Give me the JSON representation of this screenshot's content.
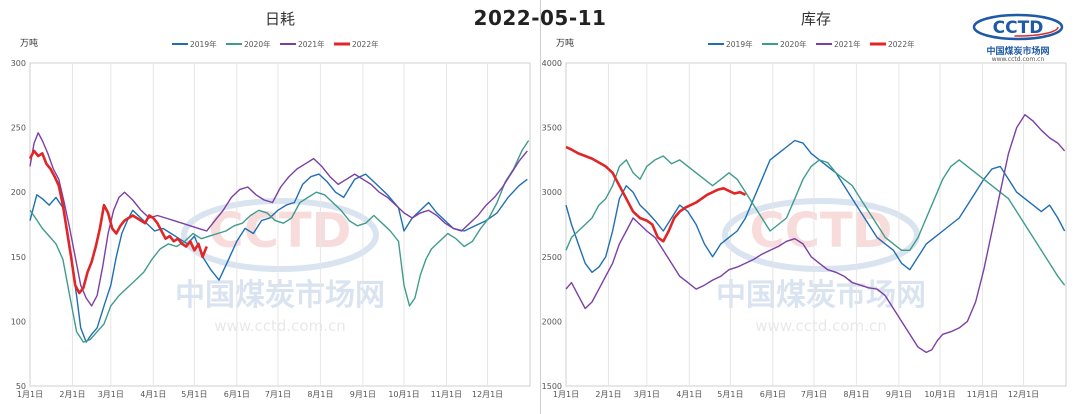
{
  "header": {
    "date": "2022-05-11"
  },
  "logo": {
    "text": "CCTD",
    "name_cn": "中国煤炭市场网",
    "url": "www.cctd.com.cn"
  },
  "watermark": {
    "text_cn": "中国煤炭市场网",
    "url": "www.cctd.com.cn",
    "mark": "CCTD"
  },
  "colors": {
    "2019": "#1f6fb2",
    "2020": "#3f9c8c",
    "2021": "#7b3fa6",
    "2022": "#e02626"
  },
  "x_tick_labels": [
    "1月1日",
    "2月1日",
    "3月1日",
    "4月1日",
    "5月1日",
    "6月1日",
    "7月1日",
    "8月1日",
    "9月1日",
    "10月1日",
    "11月1日",
    "12月1日"
  ],
  "chart_data": [
    {
      "type": "line",
      "title": "日耗",
      "ylabel": "万吨",
      "ylim": [
        50,
        300
      ],
      "yticks": [
        50,
        100,
        150,
        200,
        250,
        300
      ],
      "x_unit": "day_of_year",
      "xlim": [
        1,
        366
      ],
      "grid": "vertical",
      "legend_position": "top",
      "series": [
        {
          "name": "2019年",
          "x": [
            1,
            6,
            10,
            15,
            20,
            25,
            30,
            35,
            38,
            42,
            46,
            50,
            55,
            60,
            64,
            68,
            72,
            76,
            80,
            86,
            92,
            98,
            104,
            110,
            116,
            121,
            127,
            133,
            139,
            146,
            152,
            158,
            164,
            170,
            176,
            182,
            188,
            194,
            200,
            206,
            212,
            218,
            224,
            230,
            238,
            246,
            254,
            262,
            270,
            274,
            280,
            286,
            292,
            298,
            304,
            310,
            318,
            326,
            334,
            342,
            350,
            358,
            364
          ],
          "y": [
            178,
            198,
            195,
            190,
            196,
            188,
            155,
            120,
            95,
            84,
            90,
            95,
            112,
            128,
            150,
            168,
            178,
            186,
            182,
            176,
            170,
            172,
            168,
            164,
            160,
            166,
            150,
            140,
            132,
            148,
            162,
            172,
            168,
            178,
            180,
            186,
            190,
            192,
            206,
            212,
            214,
            208,
            200,
            196,
            210,
            214,
            206,
            198,
            188,
            170,
            180,
            186,
            192,
            184,
            178,
            172,
            170,
            174,
            178,
            184,
            196,
            205,
            210
          ]
        },
        {
          "name": "2020年",
          "x": [
            1,
            5,
            10,
            15,
            20,
            25,
            30,
            35,
            40,
            45,
            50,
            55,
            60,
            66,
            72,
            78,
            84,
            90,
            96,
            102,
            108,
            114,
            120,
            126,
            132,
            138,
            144,
            150,
            156,
            162,
            168,
            174,
            180,
            186,
            192,
            198,
            204,
            210,
            216,
            222,
            228,
            234,
            240,
            246,
            252,
            258,
            264,
            270,
            274,
            278,
            282,
            286,
            290,
            294,
            300,
            306,
            312,
            318,
            324,
            330,
            336,
            342,
            348,
            354,
            360,
            365
          ],
          "y": [
            186,
            180,
            172,
            166,
            160,
            148,
            120,
            92,
            84,
            86,
            92,
            98,
            112,
            120,
            126,
            132,
            138,
            148,
            156,
            160,
            158,
            162,
            168,
            164,
            166,
            168,
            170,
            174,
            176,
            182,
            186,
            184,
            178,
            176,
            180,
            192,
            196,
            200,
            198,
            192,
            186,
            178,
            174,
            176,
            182,
            176,
            170,
            162,
            128,
            112,
            118,
            136,
            148,
            156,
            162,
            168,
            164,
            158,
            162,
            172,
            180,
            192,
            208,
            218,
            232,
            240
          ]
        },
        {
          "name": "2021年",
          "x": [
            1,
            4,
            7,
            10,
            14,
            18,
            22,
            26,
            30,
            34,
            38,
            42,
            46,
            50,
            54,
            58,
            62,
            66,
            70,
            76,
            82,
            88,
            94,
            100,
            106,
            112,
            118,
            124,
            130,
            136,
            142,
            148,
            154,
            160,
            166,
            172,
            178,
            184,
            190,
            196,
            202,
            208,
            214,
            220,
            226,
            232,
            238,
            244,
            250,
            256,
            262,
            268,
            274,
            280,
            286,
            292,
            298,
            304,
            310,
            316,
            322,
            328,
            334,
            340,
            346,
            352,
            358,
            364
          ],
          "y": [
            220,
            238,
            246,
            240,
            230,
            218,
            210,
            192,
            172,
            150,
            128,
            118,
            112,
            120,
            142,
            168,
            186,
            196,
            200,
            194,
            186,
            180,
            182,
            180,
            178,
            176,
            174,
            172,
            170,
            178,
            186,
            196,
            202,
            204,
            198,
            194,
            192,
            204,
            212,
            218,
            222,
            226,
            220,
            212,
            206,
            210,
            214,
            210,
            206,
            200,
            196,
            190,
            184,
            180,
            184,
            186,
            182,
            176,
            172,
            170,
            176,
            182,
            190,
            196,
            204,
            214,
            224,
            232
          ]
        },
        {
          "name": "2022年",
          "x": [
            1,
            4,
            7,
            10,
            13,
            16,
            19,
            22,
            25,
            28,
            31,
            34,
            37,
            40,
            43,
            46,
            49,
            52,
            55,
            58,
            61,
            64,
            67,
            70,
            73,
            76,
            79,
            82,
            85,
            88,
            91,
            94,
            97,
            100,
            103,
            106,
            109,
            112,
            115,
            118,
            121,
            124,
            127,
            130
          ],
          "y": [
            226,
            232,
            228,
            230,
            222,
            218,
            212,
            205,
            190,
            170,
            150,
            128,
            122,
            126,
            138,
            146,
            158,
            172,
            190,
            184,
            172,
            168,
            174,
            178,
            180,
            182,
            180,
            178,
            176,
            182,
            180,
            176,
            170,
            164,
            166,
            162,
            164,
            160,
            158,
            162,
            155,
            160,
            150,
            158
          ]
        }
      ]
    },
    {
      "type": "line",
      "title": "库存",
      "ylabel": "万吨",
      "ylim": [
        1500,
        4000
      ],
      "yticks": [
        1500,
        2000,
        2500,
        3000,
        3500,
        4000
      ],
      "x_unit": "day_of_year",
      "xlim": [
        1,
        366
      ],
      "grid": "vertical",
      "legend_position": "top",
      "series": [
        {
          "name": "2019年",
          "x": [
            1,
            5,
            10,
            15,
            20,
            25,
            30,
            35,
            40,
            45,
            50,
            55,
            60,
            66,
            72,
            78,
            84,
            90,
            96,
            102,
            108,
            114,
            120,
            126,
            132,
            138,
            144,
            150,
            156,
            162,
            168,
            174,
            180,
            186,
            192,
            198,
            204,
            210,
            216,
            222,
            228,
            234,
            240,
            246,
            252,
            258,
            264,
            270,
            276,
            282,
            288,
            294,
            300,
            306,
            312,
            318,
            324,
            330,
            336,
            342,
            348,
            354,
            360,
            365
          ],
          "y": [
            2900,
            2750,
            2600,
            2450,
            2380,
            2420,
            2500,
            2700,
            2950,
            3050,
            3000,
            2900,
            2850,
            2780,
            2700,
            2800,
            2900,
            2850,
            2750,
            2600,
            2500,
            2600,
            2650,
            2700,
            2800,
            2950,
            3100,
            3250,
            3300,
            3350,
            3400,
            3380,
            3300,
            3250,
            3200,
            3150,
            3050,
            2950,
            2850,
            2750,
            2650,
            2600,
            2550,
            2450,
            2400,
            2500,
            2600,
            2650,
            2700,
            2750,
            2800,
            2900,
            3000,
            3100,
            3180,
            3200,
            3100,
            3000,
            2950,
            2900,
            2850,
            2900,
            2800,
            2700
          ]
        },
        {
          "name": "2020年",
          "x": [
            1,
            5,
            10,
            15,
            20,
            25,
            30,
            35,
            40,
            45,
            50,
            55,
            60,
            66,
            72,
            78,
            84,
            90,
            96,
            102,
            108,
            114,
            120,
            126,
            132,
            138,
            144,
            150,
            156,
            162,
            168,
            174,
            180,
            186,
            192,
            198,
            204,
            210,
            216,
            222,
            228,
            234,
            240,
            246,
            252,
            258,
            264,
            270,
            276,
            282,
            288,
            294,
            300,
            306,
            312,
            318,
            324,
            330,
            336,
            342,
            348,
            354,
            360,
            365
          ],
          "y": [
            2550,
            2650,
            2700,
            2750,
            2800,
            2900,
            2950,
            3050,
            3200,
            3250,
            3150,
            3100,
            3200,
            3250,
            3280,
            3220,
            3250,
            3200,
            3150,
            3100,
            3050,
            3100,
            3150,
            3100,
            3000,
            2900,
            2800,
            2700,
            2750,
            2800,
            2950,
            3100,
            3200,
            3250,
            3230,
            3150,
            3100,
            3050,
            2950,
            2850,
            2750,
            2650,
            2600,
            2550,
            2550,
            2650,
            2800,
            2950,
            3100,
            3200,
            3250,
            3200,
            3150,
            3100,
            3050,
            3000,
            2950,
            2850,
            2750,
            2650,
            2550,
            2450,
            2350,
            2280
          ]
        },
        {
          "name": "2021年",
          "x": [
            1,
            5,
            10,
            15,
            20,
            25,
            30,
            35,
            40,
            45,
            50,
            55,
            60,
            66,
            72,
            78,
            84,
            90,
            96,
            102,
            108,
            114,
            120,
            126,
            132,
            138,
            144,
            150,
            156,
            162,
            168,
            174,
            180,
            186,
            192,
            198,
            204,
            210,
            216,
            222,
            228,
            234,
            240,
            246,
            252,
            258,
            264,
            268,
            272,
            276,
            282,
            288,
            294,
            300,
            306,
            312,
            318,
            324,
            330,
            336,
            342,
            348,
            354,
            360,
            365
          ],
          "y": [
            2250,
            2300,
            2200,
            2100,
            2150,
            2250,
            2350,
            2450,
            2600,
            2700,
            2800,
            2750,
            2700,
            2650,
            2550,
            2450,
            2350,
            2300,
            2250,
            2280,
            2320,
            2350,
            2400,
            2420,
            2450,
            2480,
            2520,
            2550,
            2580,
            2620,
            2640,
            2600,
            2500,
            2450,
            2400,
            2380,
            2350,
            2300,
            2280,
            2260,
            2250,
            2200,
            2100,
            2000,
            1900,
            1800,
            1760,
            1780,
            1850,
            1900,
            1920,
            1950,
            2000,
            2150,
            2400,
            2700,
            3000,
            3300,
            3500,
            3600,
            3550,
            3480,
            3420,
            3380,
            3320
          ]
        },
        {
          "name": "2022年",
          "x": [
            1,
            5,
            10,
            15,
            20,
            25,
            30,
            35,
            40,
            45,
            50,
            55,
            60,
            64,
            68,
            72,
            76,
            80,
            84,
            88,
            92,
            96,
            100,
            104,
            108,
            112,
            116,
            120,
            124,
            128,
            132
          ],
          "y": [
            3350,
            3330,
            3300,
            3280,
            3260,
            3230,
            3200,
            3150,
            3050,
            2950,
            2850,
            2800,
            2780,
            2750,
            2650,
            2620,
            2700,
            2800,
            2850,
            2880,
            2900,
            2920,
            2950,
            2980,
            3000,
            3020,
            3030,
            3010,
            2990,
            3000,
            2980
          ]
        }
      ]
    }
  ]
}
